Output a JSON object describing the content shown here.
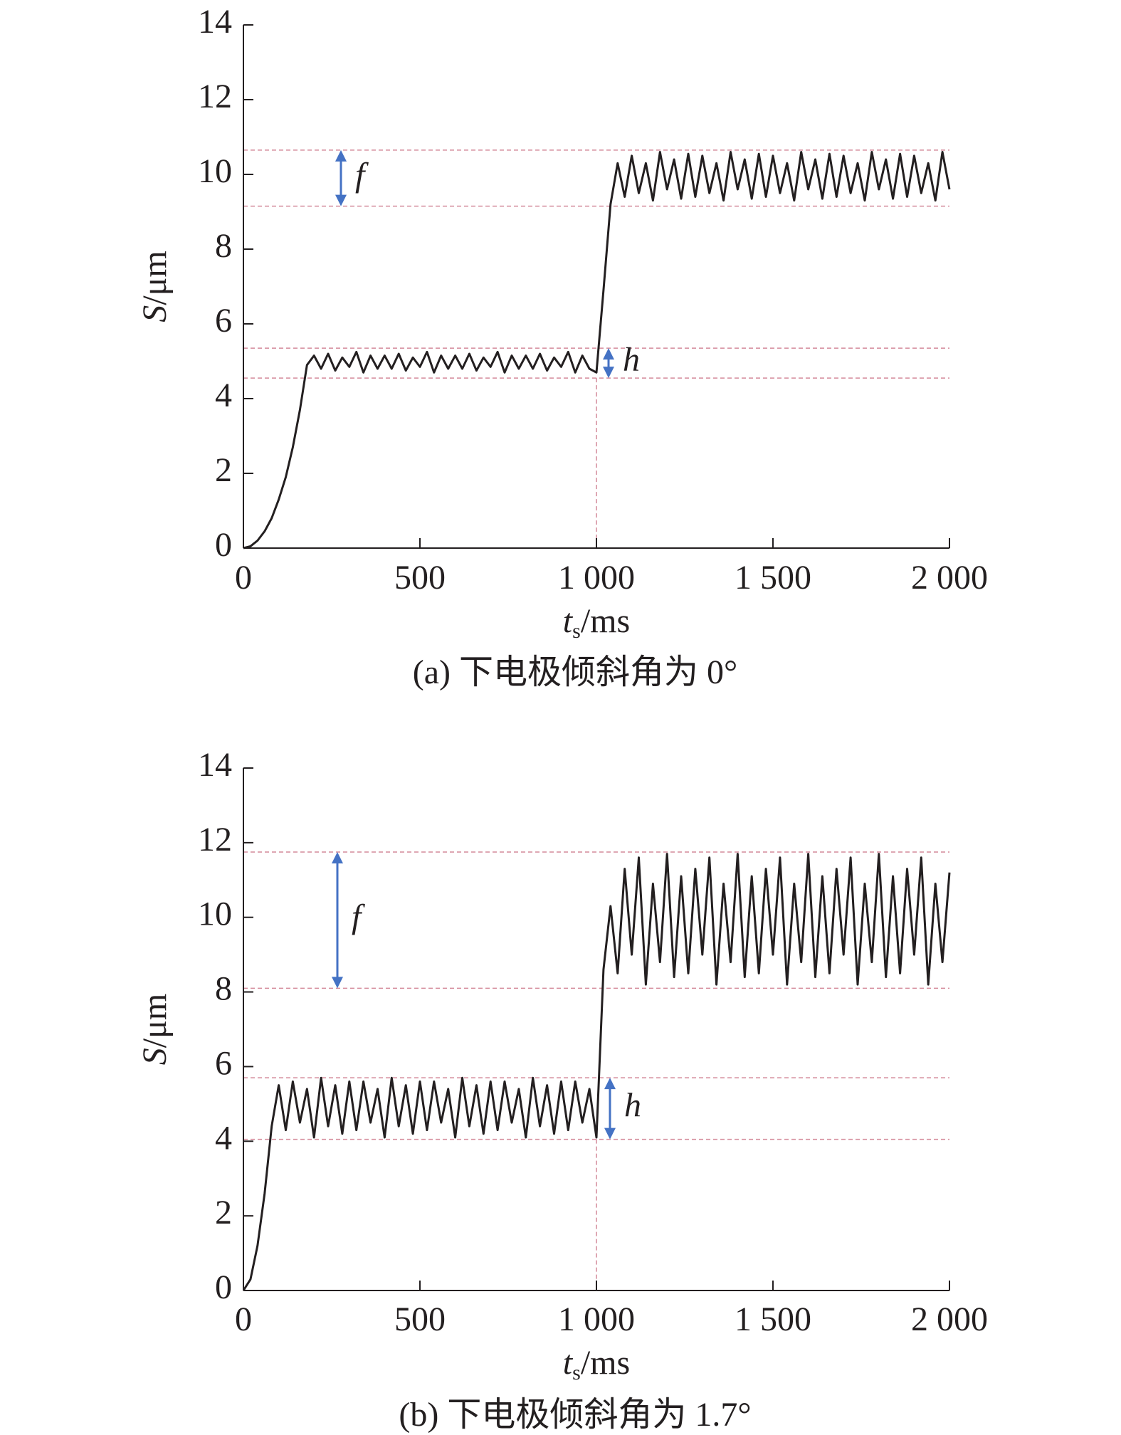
{
  "chart_data": [
    {
      "type": "line",
      "caption": "(a) 下电极倾斜角为 0°",
      "xlabel": {
        "var": "t",
        "sub": "s",
        "unit": "/ms"
      },
      "ylabel": {
        "var": "S",
        "unit": "/μm"
      },
      "xlim": [
        0,
        2000
      ],
      "ylim": [
        0,
        14
      ],
      "xticks": [
        0,
        500,
        {
          "value": 1000,
          "label": "1 000"
        },
        {
          "value": 1500,
          "label": "1 500"
        },
        {
          "value": 2000,
          "label": "2 000"
        }
      ],
      "yticks": [
        0,
        2,
        4,
        6,
        8,
        10,
        12,
        14
      ],
      "hlines": [
        10.65,
        9.15,
        5.35,
        4.55
      ],
      "vline": 1000,
      "annotations": [
        "f",
        "h"
      ],
      "series": [
        {
          "color": "#231f20",
          "x": [
            0,
            20,
            40,
            60,
            80,
            100,
            120,
            140,
            160,
            180,
            200,
            220,
            240,
            260,
            280,
            300,
            320,
            340,
            360,
            380,
            400,
            420,
            440,
            460,
            480,
            500,
            520,
            540,
            560,
            580,
            600,
            620,
            640,
            660,
            680,
            700,
            720,
            740,
            760,
            780,
            800,
            820,
            840,
            860,
            880,
            900,
            920,
            940,
            960,
            980,
            1000,
            1020,
            1040,
            1060,
            1080,
            1100,
            1120,
            1140,
            1160,
            1180,
            1200,
            1220,
            1240,
            1260,
            1280,
            1300,
            1320,
            1340,
            1360,
            1380,
            1400,
            1420,
            1440,
            1460,
            1480,
            1500,
            1520,
            1540,
            1560,
            1580,
            1600,
            1620,
            1640,
            1660,
            1680,
            1700,
            1720,
            1740,
            1760,
            1780,
            1800,
            1820,
            1840,
            1860,
            1880,
            1900,
            1920,
            1940,
            1960,
            1980,
            2000
          ],
          "values": [
            0,
            0.05,
            0.2,
            0.45,
            0.8,
            1.3,
            1.9,
            2.7,
            3.7,
            4.9,
            5.15,
            4.8,
            5.2,
            4.75,
            5.1,
            4.85,
            5.25,
            4.7,
            5.15,
            4.8,
            5.15,
            4.8,
            5.2,
            4.75,
            5.1,
            4.85,
            5.25,
            4.7,
            5.15,
            4.8,
            5.15,
            4.8,
            5.2,
            4.75,
            5.1,
            4.85,
            5.25,
            4.7,
            5.15,
            4.8,
            5.15,
            4.8,
            5.2,
            4.75,
            5.1,
            4.85,
            5.25,
            4.7,
            5.15,
            4.8,
            4.7,
            6.9,
            9.2,
            10.3,
            9.4,
            10.5,
            9.5,
            10.3,
            9.3,
            10.6,
            9.6,
            10.4,
            9.35,
            10.55,
            9.4,
            10.5,
            9.5,
            10.3,
            9.3,
            10.6,
            9.6,
            10.4,
            9.35,
            10.55,
            9.4,
            10.5,
            9.5,
            10.3,
            9.3,
            10.6,
            9.6,
            10.4,
            9.35,
            10.55,
            9.4,
            10.5,
            9.5,
            10.3,
            9.3,
            10.6,
            9.6,
            10.4,
            9.35,
            10.55,
            9.4,
            10.5,
            9.5,
            10.3,
            9.3,
            10.6,
            9.6
          ]
        }
      ]
    },
    {
      "type": "line",
      "caption": "(b) 下电极倾斜角为 1.7°",
      "xlabel": {
        "var": "t",
        "sub": "s",
        "unit": "/ms"
      },
      "ylabel": {
        "var": "S",
        "unit": "/μm"
      },
      "xlim": [
        0,
        2000
      ],
      "ylim": [
        0,
        14
      ],
      "xticks": [
        0,
        500,
        {
          "value": 1000,
          "label": "1 000"
        },
        {
          "value": 1500,
          "label": "1 500"
        },
        {
          "value": 2000,
          "label": "2 000"
        }
      ],
      "yticks": [
        0,
        2,
        4,
        6,
        8,
        10,
        12,
        14
      ],
      "hlines": [
        11.75,
        8.1,
        5.7,
        4.05
      ],
      "vline": 1000,
      "annotations": [
        "f",
        "h"
      ],
      "series": [
        {
          "color": "#231f20",
          "x": [
            0,
            20,
            40,
            60,
            80,
            100,
            120,
            140,
            160,
            180,
            200,
            220,
            240,
            260,
            280,
            300,
            320,
            340,
            360,
            380,
            400,
            420,
            440,
            460,
            480,
            500,
            520,
            540,
            560,
            580,
            600,
            620,
            640,
            660,
            680,
            700,
            720,
            740,
            760,
            780,
            800,
            820,
            840,
            860,
            880,
            900,
            920,
            940,
            960,
            980,
            1000,
            1020,
            1040,
            1060,
            1080,
            1100,
            1120,
            1140,
            1160,
            1180,
            1200,
            1220,
            1240,
            1260,
            1280,
            1300,
            1320,
            1340,
            1360,
            1380,
            1400,
            1420,
            1440,
            1460,
            1480,
            1500,
            1520,
            1540,
            1560,
            1580,
            1600,
            1620,
            1640,
            1660,
            1680,
            1700,
            1720,
            1740,
            1760,
            1780,
            1800,
            1820,
            1840,
            1860,
            1880,
            1900,
            1920,
            1940,
            1960,
            1980,
            2000
          ],
          "values": [
            0,
            0.3,
            1.2,
            2.6,
            4.4,
            5.5,
            4.3,
            5.6,
            4.5,
            5.4,
            4.1,
            5.7,
            4.4,
            5.5,
            4.2,
            5.6,
            4.3,
            5.6,
            4.5,
            5.4,
            4.1,
            5.7,
            4.4,
            5.5,
            4.2,
            5.6,
            4.3,
            5.6,
            4.5,
            5.4,
            4.1,
            5.7,
            4.4,
            5.5,
            4.2,
            5.6,
            4.3,
            5.6,
            4.5,
            5.4,
            4.1,
            5.7,
            4.4,
            5.5,
            4.2,
            5.6,
            4.3,
            5.6,
            4.5,
            5.4,
            4.1,
            8.6,
            10.3,
            8.5,
            11.3,
            9.0,
            11.6,
            8.2,
            10.9,
            8.8,
            11.7,
            8.4,
            11.1,
            8.5,
            11.3,
            9.0,
            11.6,
            8.2,
            10.9,
            8.8,
            11.7,
            8.4,
            11.1,
            8.5,
            11.3,
            9.0,
            11.6,
            8.2,
            10.9,
            8.8,
            11.7,
            8.4,
            11.1,
            8.5,
            11.3,
            9.0,
            11.6,
            8.2,
            10.9,
            8.8,
            11.7,
            8.4,
            11.1,
            8.5,
            11.3,
            9.0,
            11.6,
            8.2,
            10.9,
            8.8,
            11.2
          ]
        }
      ]
    }
  ]
}
